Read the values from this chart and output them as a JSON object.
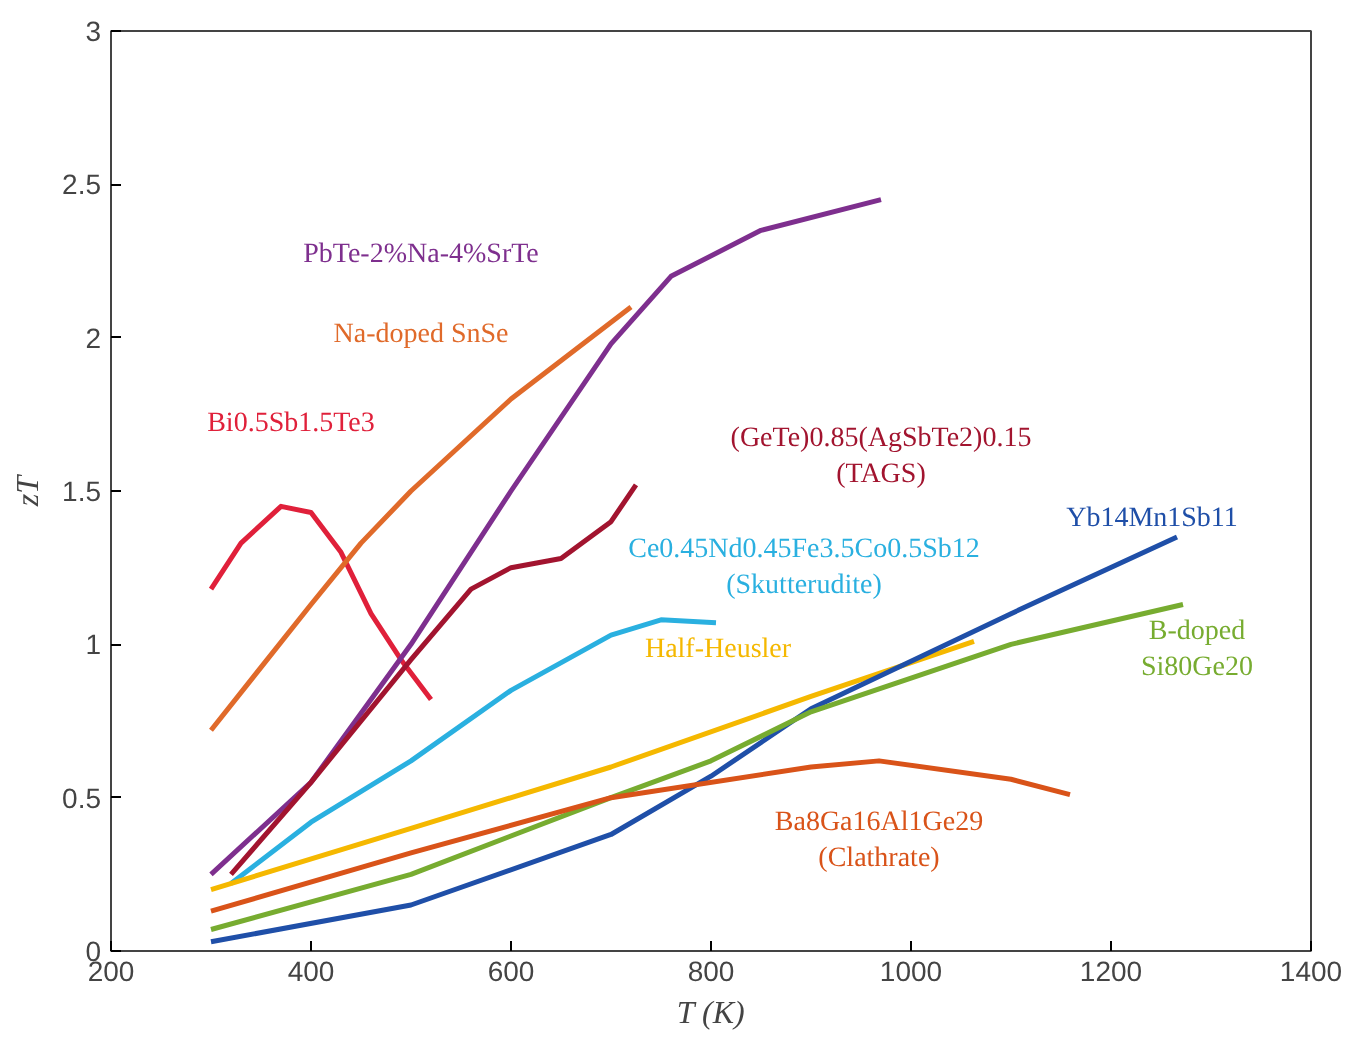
{
  "chart_data": {
    "type": "line",
    "xlabel": "T (K)",
    "ylabel": "zT",
    "xlim": [
      200,
      1400
    ],
    "xticks": [
      200,
      400,
      600,
      800,
      1000,
      1200,
      1400
    ],
    "ylim": [
      0,
      3
    ],
    "yticks": [
      0,
      0.5,
      1,
      1.5,
      2,
      2.5,
      3
    ],
    "grid": false,
    "marker": "none",
    "line_style": "solid",
    "series": [
      {
        "name": "Bi0.5Sb1.5Te3",
        "color": "#e0203a",
        "x": [
          300,
          330,
          370,
          400,
          430,
          460,
          490,
          520
        ],
        "values": [
          1.18,
          1.33,
          1.45,
          1.43,
          1.3,
          1.1,
          0.95,
          0.82
        ]
      },
      {
        "name": "Na-doped SnSe",
        "color": "#e06a2a",
        "x": [
          300,
          400,
          450,
          500,
          600,
          720
        ],
        "values": [
          0.72,
          1.13,
          1.33,
          1.5,
          1.8,
          2.1
        ]
      },
      {
        "name": "PbTe-2%Na-4%SrTe",
        "color": "#7e2f8e",
        "x": [
          300,
          400,
          500,
          600,
          700,
          760,
          850,
          970
        ],
        "values": [
          0.25,
          0.55,
          1.0,
          1.5,
          1.98,
          2.2,
          2.35,
          2.45
        ]
      },
      {
        "name": "(GeTe)0.85(AgSbTe2)0.15\n(TAGS)",
        "color": "#a2142f",
        "x": [
          320,
          400,
          500,
          560,
          600,
          650,
          700,
          725
        ],
        "values": [
          0.25,
          0.55,
          0.95,
          1.18,
          1.25,
          1.28,
          1.4,
          1.52
        ]
      },
      {
        "name": "Ce0.45Nd0.45Fe3.5Co0.5Sb12\n(Skutterudite)",
        "color": "#2ab0e0",
        "x": [
          320,
          400,
          500,
          600,
          700,
          750,
          805
        ],
        "values": [
          0.22,
          0.42,
          0.62,
          0.85,
          1.03,
          1.08,
          1.07
        ]
      },
      {
        "name": "Half-Heusler",
        "color": "#f5b800",
        "x": [
          300,
          500,
          700,
          900,
          1063
        ],
        "values": [
          0.2,
          0.4,
          0.6,
          0.83,
          1.01
        ]
      },
      {
        "name": "Yb14Mn1Sb11",
        "color": "#1f4fa8",
        "x": [
          300,
          500,
          700,
          800,
          900,
          1100,
          1266
        ],
        "values": [
          0.03,
          0.15,
          0.38,
          0.57,
          0.79,
          1.1,
          1.35
        ]
      },
      {
        "name": "B-doped\nSi80Ge20",
        "color": "#77ac30",
        "x": [
          300,
          500,
          700,
          800,
          900,
          1100,
          1272
        ],
        "values": [
          0.07,
          0.25,
          0.5,
          0.62,
          0.78,
          1.0,
          1.13
        ]
      },
      {
        "name": "Ba8Ga16Al1Ge29\n(Clathrate)",
        "color": "#d95319",
        "x": [
          300,
          500,
          700,
          900,
          968,
          1100,
          1159
        ],
        "values": [
          0.13,
          0.32,
          0.5,
          0.6,
          0.62,
          0.56,
          0.51
        ]
      }
    ]
  }
}
